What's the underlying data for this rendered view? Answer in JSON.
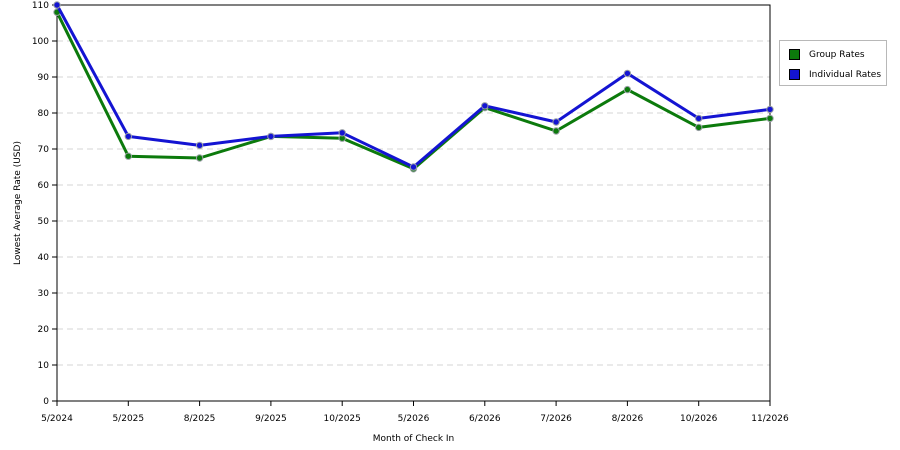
{
  "chart_data": {
    "type": "line",
    "title": "",
    "xlabel": "Month of Check In",
    "ylabel": "Lowest Average Rate (USD)",
    "categories": [
      "5/2024",
      "5/2025",
      "8/2025",
      "9/2025",
      "10/2025",
      "5/2026",
      "6/2026",
      "7/2026",
      "8/2026",
      "10/2026",
      "11/2026"
    ],
    "ylim": [
      0,
      110
    ],
    "yticks": [
      0,
      10,
      20,
      30,
      40,
      50,
      60,
      70,
      80,
      90,
      100,
      110
    ],
    "grid": "horizontal dashed",
    "legend_position": "right",
    "series": [
      {
        "name": "Group Rates",
        "color": "#0c7a0c",
        "values": [
          108,
          68,
          67.5,
          73.5,
          73,
          64.5,
          81.5,
          75,
          86.5,
          76,
          78.5
        ]
      },
      {
        "name": "Individual Rates",
        "color": "#1414d2",
        "values": [
          110,
          73.5,
          71,
          73.5,
          74.5,
          65,
          82,
          77.5,
          91,
          78.5,
          81
        ]
      }
    ]
  }
}
